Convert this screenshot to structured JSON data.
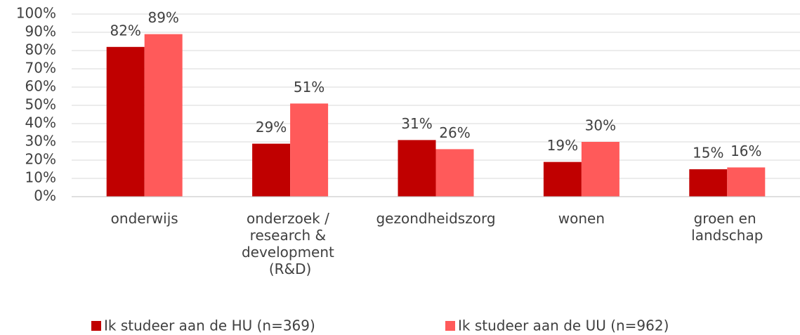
{
  "chart_data": {
    "type": "bar",
    "categories": [
      "onderwijs",
      "onderzoek / research & development (R&D)",
      "gezondheidszorg",
      "wonen",
      "groen en landschap"
    ],
    "series": [
      {
        "name": "Ik studeer aan de HU (n=369)",
        "color": "#c00000",
        "values": [
          82,
          29,
          31,
          19,
          15
        ],
        "value_labels": [
          "82%",
          "29%",
          "31%",
          "19%",
          "15%"
        ]
      },
      {
        "name": "Ik studeer aan de UU (n=962)",
        "color": "#ff5a5a",
        "values": [
          89,
          51,
          26,
          30,
          16
        ],
        "value_labels": [
          "89%",
          "51%",
          "26%",
          "30%",
          "16%"
        ]
      }
    ],
    "ylim": [
      0,
      100
    ],
    "yticks": [
      {
        "value": 0,
        "label": "0%"
      },
      {
        "value": 10,
        "label": "10%"
      },
      {
        "value": 20,
        "label": "20%"
      },
      {
        "value": 30,
        "label": "30%"
      },
      {
        "value": 40,
        "label": "40%"
      },
      {
        "value": 50,
        "label": "50%"
      },
      {
        "value": 60,
        "label": "60%"
      },
      {
        "value": 70,
        "label": "70%"
      },
      {
        "value": 80,
        "label": "80%"
      },
      {
        "value": 90,
        "label": "90%"
      },
      {
        "value": 100,
        "label": "100%"
      }
    ],
    "grid": true,
    "legend": "bottom"
  }
}
